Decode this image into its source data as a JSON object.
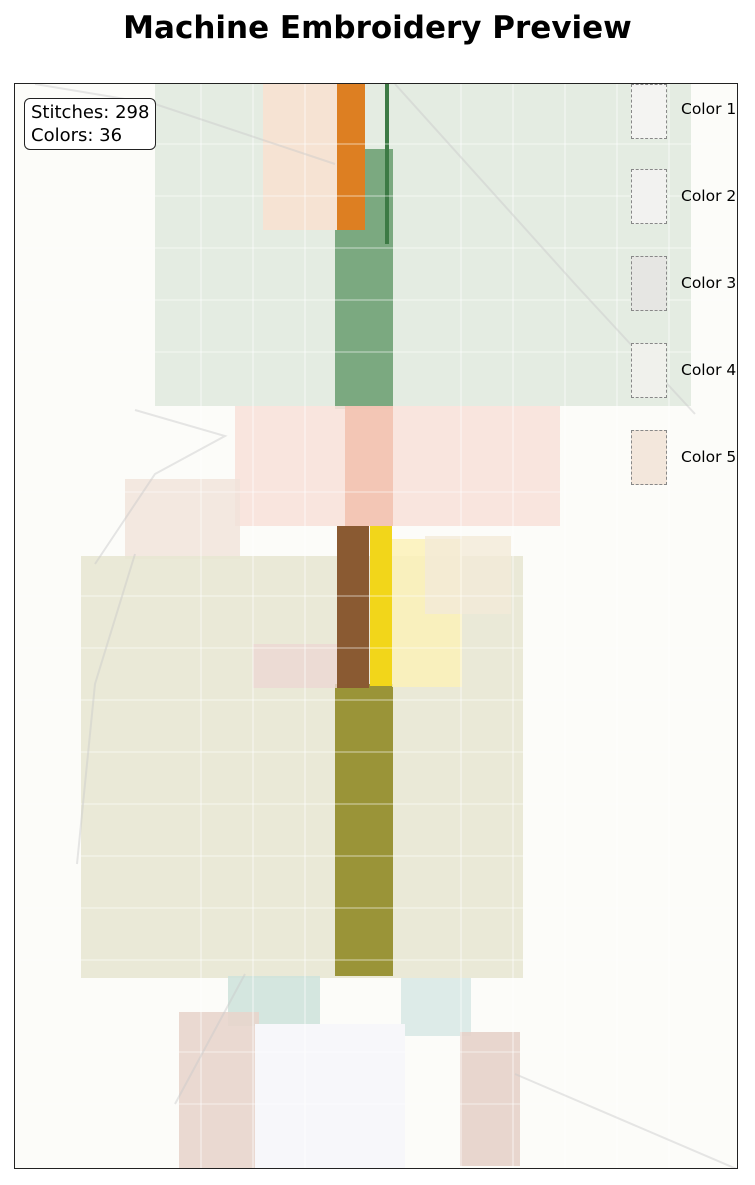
{
  "title": "Machine Embroidery Preview",
  "stats": {
    "stitches": "Stitches: 298",
    "colors": "Colors: 36"
  },
  "legend": [
    {
      "label": "Color 1",
      "color": "#f4f4f2"
    },
    {
      "label": "Color 2",
      "color": "#f2f2f0"
    },
    {
      "label": "Color 3",
      "color": "#e6e6e3"
    },
    {
      "label": "Color 4",
      "color": "#f0f1ec"
    },
    {
      "label": "Color 5",
      "color": "#f3e7dc"
    }
  ],
  "colors": {
    "green": "#5a9a62",
    "green_light": "#dfe9de",
    "orange": "#dd7f22",
    "peach": "#f6e3d3",
    "pink": "#f6d2c6",
    "olive": "#8e8a2a",
    "olive_light": "#e6e5d0",
    "brown": "#8a5a32",
    "yellow": "#f2d61a",
    "yellow_light": "#fbf1b8",
    "teal_light": "#cfe3dc",
    "rose_light": "#ead9d2"
  }
}
